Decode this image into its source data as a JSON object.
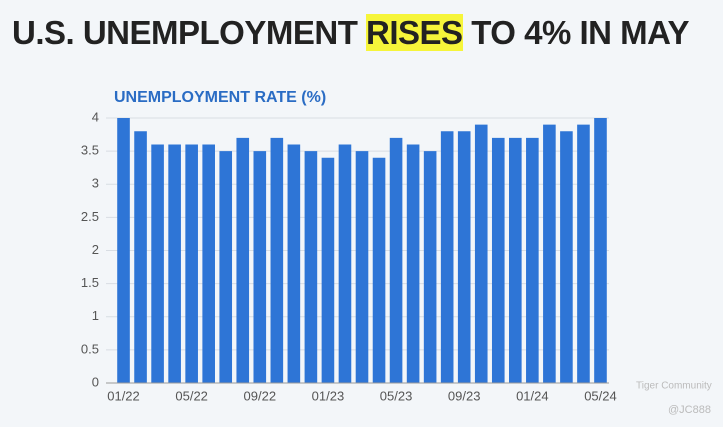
{
  "chart_data": {
    "type": "bar",
    "title_parts": [
      "U.S. UNEMPLOYMENT",
      "RISES",
      "TO 4% IN MAY"
    ],
    "subtitle": "UNEMPLOYMENT RATE (%)",
    "categories": [
      "01/22",
      null,
      null,
      null,
      "05/22",
      null,
      null,
      null,
      "09/22",
      null,
      null,
      null,
      "01/23",
      null,
      null,
      null,
      "05/23",
      null,
      null,
      null,
      "09/23",
      null,
      null,
      null,
      "01/24",
      null,
      null,
      null,
      "05/24"
    ],
    "values": [
      4.0,
      3.8,
      3.6,
      3.6,
      3.6,
      3.6,
      3.5,
      3.7,
      3.5,
      3.7,
      3.6,
      3.5,
      3.4,
      3.6,
      3.5,
      3.4,
      3.7,
      3.6,
      3.5,
      3.8,
      3.8,
      3.9,
      3.7,
      3.7,
      3.7,
      3.9,
      3.8,
      3.9,
      4.0
    ],
    "color": "#2e75d6",
    "ylim": [
      0,
      4
    ],
    "yticks": [
      0,
      0.5,
      1,
      1.5,
      2,
      2.5,
      3,
      3.5,
      4
    ],
    "grid": true,
    "watermarks": [
      "Tiger Community",
      "@JC888"
    ]
  }
}
